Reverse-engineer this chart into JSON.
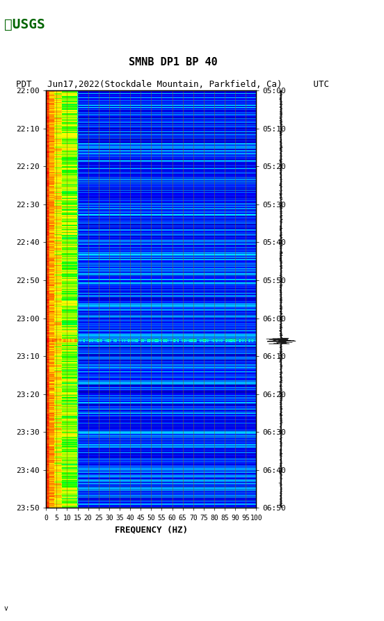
{
  "title_line1": "SMNB DP1 BP 40",
  "title_line2": "PDT   Jun17,2022(Stockdale Mountain, Parkfield, Ca)      UTC",
  "left_times": [
    "22:00",
    "22:10",
    "22:20",
    "22:30",
    "22:40",
    "22:50",
    "23:00",
    "23:10",
    "23:20",
    "23:30",
    "23:40",
    "23:50"
  ],
  "right_times": [
    "05:00",
    "05:10",
    "05:20",
    "05:30",
    "05:40",
    "05:50",
    "06:00",
    "06:10",
    "06:20",
    "06:30",
    "06:40",
    "06:50"
  ],
  "freq_ticks": [
    0,
    5,
    10,
    15,
    20,
    25,
    30,
    35,
    40,
    45,
    50,
    55,
    60,
    65,
    70,
    75,
    80,
    85,
    90,
    95,
    100
  ],
  "xlabel": "FREQUENCY (HZ)",
  "freq_min": 0,
  "freq_max": 100,
  "time_steps": 120,
  "freq_steps": 200,
  "background_color": "#ffffff",
  "spectrogram_bg": "#00008B",
  "low_freq_energy_color": "#FF0000",
  "grid_color": "#8B6914",
  "grid_alpha": 0.7,
  "fig_width": 5.52,
  "fig_height": 8.93
}
